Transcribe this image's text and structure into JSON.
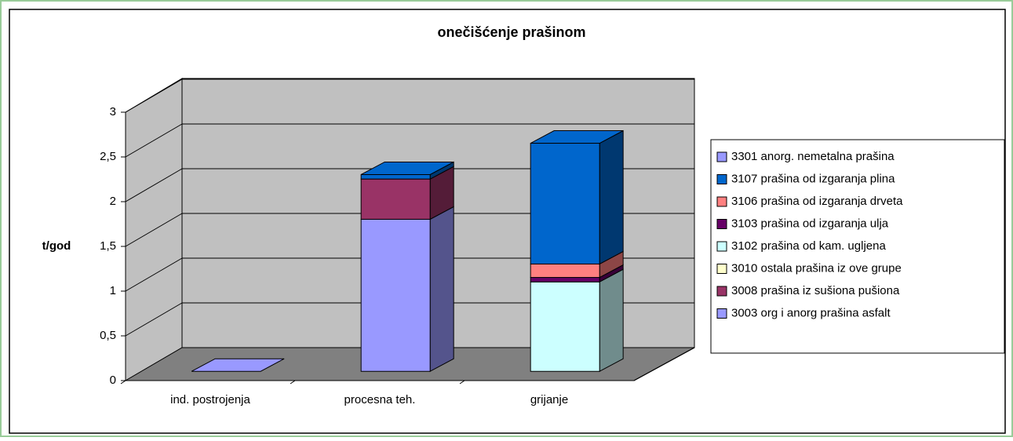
{
  "chart_data": {
    "type": "bar3d_stacked",
    "title": "onečišćenje prašinom",
    "y_label": "t/god",
    "categories": [
      "ind. postrojenja",
      "procesna teh.",
      "grijanje"
    ],
    "series": [
      {
        "name": "3003 org i anorg prašina  asfalt",
        "color": "#9999ff",
        "values": [
          0,
          1.7,
          0
        ]
      },
      {
        "name": "3008 prašina iz sušiona pušiona",
        "color": "#993366",
        "values": [
          0,
          0.45,
          0
        ]
      },
      {
        "name": "3010 ostala prašina iz ove grupe",
        "color": "#ffffcc",
        "values": [
          0,
          0,
          0
        ]
      },
      {
        "name": "3102 prašina od kam. ugljena",
        "color": "#ccffff",
        "values": [
          0,
          0,
          1.0
        ]
      },
      {
        "name": "3103  prašina od izgaranja ulja",
        "color": "#660066",
        "values": [
          0,
          0,
          0.05
        ]
      },
      {
        "name": "3106 prašina od izgaranja drveta",
        "color": "#ff8080",
        "values": [
          0,
          0,
          0.15
        ]
      },
      {
        "name": "3107 prašina od izgaranja plina",
        "color": "#0066cc",
        "values": [
          0,
          0.05,
          1.35
        ]
      },
      {
        "name": "3301  anorg. nemetalna prašina",
        "color": "#9999ff",
        "values": [
          0,
          0,
          0
        ]
      }
    ],
    "ylim": [
      0,
      3
    ],
    "yticks": [
      0,
      {
        "value": 0.5,
        "label": "0,5"
      },
      1,
      {
        "value": 1.5,
        "label": "1,5"
      },
      2,
      {
        "value": 2.5,
        "label": "2,5"
      },
      3
    ],
    "grid": true,
    "legend": "right"
  }
}
